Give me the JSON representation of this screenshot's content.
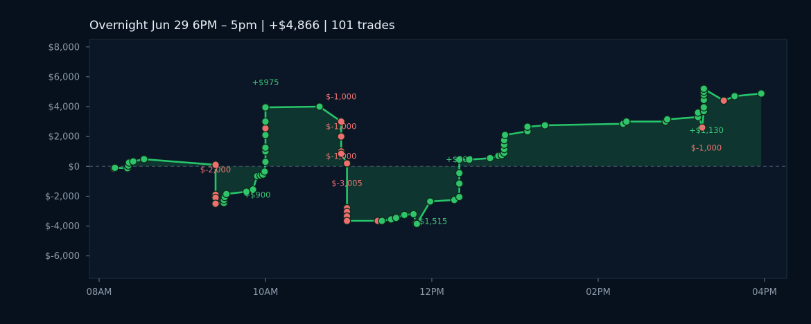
{
  "chart_data": {
    "type": "line",
    "title": "Overnight  Jun 29 6PM – 5pm  |  +$4,866  |  101 trades",
    "xlabel": "",
    "ylabel": "",
    "x_domain_hours": [
      7.92,
      16.55
    ],
    "ylim": [
      -7500,
      8500
    ],
    "x_ticks": [
      {
        "value": 8,
        "label": "08AM"
      },
      {
        "value": 10,
        "label": "10AM"
      },
      {
        "value": 12,
        "label": "12PM"
      },
      {
        "value": 14,
        "label": "02PM"
      },
      {
        "value": 16,
        "label": "04PM"
      }
    ],
    "y_ticks": [
      {
        "value": 8000,
        "label": "$8,000"
      },
      {
        "value": 6000,
        "label": "$6,000"
      },
      {
        "value": 4000,
        "label": "$4,000"
      },
      {
        "value": 2000,
        "label": "$2,000"
      },
      {
        "value": 0,
        "label": "$0"
      },
      {
        "value": -2000,
        "label": "$-2,000"
      },
      {
        "value": -4000,
        "label": "$-4,000"
      },
      {
        "value": -6000,
        "label": "$-6,000"
      }
    ],
    "grid": false,
    "legend": "none",
    "zero_line": true,
    "colors": {
      "background": "#07111d",
      "plot_background": "#0b1626",
      "plot_border": "#1f2d40",
      "line": "#27c46a",
      "fill": "#0f3b31",
      "win_point": "#2fc46a",
      "loss_point": "#ef6f70",
      "point_stroke": "#0e2a1c",
      "zero_line": "#3e4d60"
    },
    "series": [
      {
        "points": [
          {
            "x": 8.18,
            "y": -150,
            "r": "loss"
          },
          {
            "x": 8.19,
            "y": -100,
            "r": "win"
          },
          {
            "x": 8.34,
            "y": -120,
            "r": "win"
          },
          {
            "x": 8.35,
            "y": 50,
            "r": "win"
          },
          {
            "x": 8.36,
            "y": 250,
            "r": "win"
          },
          {
            "x": 8.41,
            "y": 330,
            "r": "win"
          },
          {
            "x": 8.54,
            "y": 480,
            "r": "win"
          },
          {
            "x": 9.4,
            "y": 100,
            "r": "loss"
          },
          {
            "x": 9.4,
            "y": -1900,
            "r": "loss"
          },
          {
            "x": 9.4,
            "y": -2100,
            "r": "loss"
          },
          {
            "x": 9.4,
            "y": -2500,
            "r": "loss"
          },
          {
            "x": 9.5,
            "y": -2450,
            "r": "win"
          },
          {
            "x": 9.5,
            "y": -2250,
            "r": "win"
          },
          {
            "x": 9.51,
            "y": -2050,
            "r": "win"
          },
          {
            "x": 9.53,
            "y": -1850,
            "r": "win"
          },
          {
            "x": 9.77,
            "y": -1700,
            "r": "win"
          },
          {
            "x": 9.85,
            "y": -1550,
            "r": "win"
          },
          {
            "x": 9.9,
            "y": -650,
            "r": "win"
          },
          {
            "x": 9.94,
            "y": -600,
            "r": "win"
          },
          {
            "x": 9.97,
            "y": -550,
            "r": "win"
          },
          {
            "x": 9.99,
            "y": -350,
            "r": "win"
          },
          {
            "x": 10.0,
            "y": 300,
            "r": "win"
          },
          {
            "x": 10.0,
            "y": 1000,
            "r": "win"
          },
          {
            "x": 10.0,
            "y": 1250,
            "r": "win"
          },
          {
            "x": 10.0,
            "y": 2100,
            "r": "win"
          },
          {
            "x": 10.0,
            "y": 2550,
            "r": "loss"
          },
          {
            "x": 10.0,
            "y": 3000,
            "r": "win"
          },
          {
            "x": 10.0,
            "y": 3950,
            "r": "win"
          },
          {
            "x": 10.65,
            "y": 4000,
            "r": "win"
          },
          {
            "x": 10.91,
            "y": 3000,
            "r": "loss"
          },
          {
            "x": 10.91,
            "y": 2000,
            "r": "loss"
          },
          {
            "x": 10.91,
            "y": 1000,
            "r": "loss"
          },
          {
            "x": 10.91,
            "y": 850,
            "r": "loss"
          },
          {
            "x": 10.98,
            "y": 200,
            "r": "loss"
          },
          {
            "x": 10.98,
            "y": -2800,
            "r": "loss"
          },
          {
            "x": 10.98,
            "y": -3050,
            "r": "loss"
          },
          {
            "x": 10.98,
            "y": -3350,
            "r": "loss"
          },
          {
            "x": 10.98,
            "y": -3650,
            "r": "loss"
          },
          {
            "x": 11.35,
            "y": -3650,
            "r": "loss"
          },
          {
            "x": 11.4,
            "y": -3650,
            "r": "win"
          },
          {
            "x": 11.51,
            "y": -3550,
            "r": "win"
          },
          {
            "x": 11.57,
            "y": -3450,
            "r": "win"
          },
          {
            "x": 11.67,
            "y": -3250,
            "r": "win"
          },
          {
            "x": 11.78,
            "y": -3200,
            "r": "win"
          },
          {
            "x": 11.81,
            "y": -3800,
            "r": "loss"
          },
          {
            "x": 11.82,
            "y": -3850,
            "r": "win"
          },
          {
            "x": 11.98,
            "y": -2350,
            "r": "win"
          },
          {
            "x": 12.27,
            "y": -2250,
            "r": "win"
          },
          {
            "x": 12.33,
            "y": -2050,
            "r": "win"
          },
          {
            "x": 12.33,
            "y": -1150,
            "r": "win"
          },
          {
            "x": 12.33,
            "y": -450,
            "r": "win"
          },
          {
            "x": 12.33,
            "y": 450,
            "r": "win"
          },
          {
            "x": 12.45,
            "y": 450,
            "r": "win"
          },
          {
            "x": 12.7,
            "y": 550,
            "r": "win"
          },
          {
            "x": 12.8,
            "y": 700,
            "r": "win"
          },
          {
            "x": 12.84,
            "y": 750,
            "r": "win"
          },
          {
            "x": 12.87,
            "y": 900,
            "r": "win"
          },
          {
            "x": 12.87,
            "y": 1150,
            "r": "win"
          },
          {
            "x": 12.87,
            "y": 1450,
            "r": "win"
          },
          {
            "x": 12.87,
            "y": 1750,
            "r": "win"
          },
          {
            "x": 12.88,
            "y": 2100,
            "r": "win"
          },
          {
            "x": 13.15,
            "y": 2350,
            "r": "win"
          },
          {
            "x": 13.15,
            "y": 2650,
            "r": "win"
          },
          {
            "x": 13.36,
            "y": 2750,
            "r": "win"
          },
          {
            "x": 14.3,
            "y": 2850,
            "r": "win"
          },
          {
            "x": 14.34,
            "y": 3000,
            "r": "win"
          },
          {
            "x": 14.81,
            "y": 3000,
            "r": "win"
          },
          {
            "x": 14.83,
            "y": 3150,
            "r": "win"
          },
          {
            "x": 15.2,
            "y": 3300,
            "r": "win"
          },
          {
            "x": 15.2,
            "y": 3600,
            "r": "win"
          },
          {
            "x": 15.25,
            "y": 2600,
            "r": "loss"
          },
          {
            "x": 15.27,
            "y": 3700,
            "r": "win"
          },
          {
            "x": 15.27,
            "y": 3950,
            "r": "win"
          },
          {
            "x": 15.27,
            "y": 4450,
            "r": "win"
          },
          {
            "x": 15.27,
            "y": 4800,
            "r": "win"
          },
          {
            "x": 15.27,
            "y": 5000,
            "r": "win"
          },
          {
            "x": 15.27,
            "y": 5200,
            "r": "win"
          },
          {
            "x": 15.51,
            "y": 4400,
            "r": "loss"
          },
          {
            "x": 15.64,
            "y": 4700,
            "r": "win"
          },
          {
            "x": 15.96,
            "y": 4880,
            "r": "win"
          }
        ]
      }
    ],
    "annotations": [
      {
        "text": "+$975",
        "x": 10.0,
        "y": 5450,
        "kind": "win"
      },
      {
        "text": "$-1,000",
        "x": 10.91,
        "y": 4500,
        "kind": "loss"
      },
      {
        "text": "$-1,000",
        "x": 10.91,
        "y": 2500,
        "kind": "loss"
      },
      {
        "text": "$-1,000",
        "x": 10.91,
        "y": 500,
        "kind": "loss"
      },
      {
        "text": "$-2,000",
        "x": 9.4,
        "y": -400,
        "kind": "loss"
      },
      {
        "text": "$-3,005",
        "x": 10.98,
        "y": -1300,
        "kind": "loss"
      },
      {
        "text": "+$900",
        "x": 9.9,
        "y": -2100,
        "kind": "win"
      },
      {
        "text": "$1,515",
        "x": 11.85,
        "y": -3850,
        "kind": "win-left"
      },
      {
        "text": "+$900",
        "x": 12.33,
        "y": 300,
        "kind": "win"
      },
      {
        "text": "+$1,130",
        "x": 15.3,
        "y": 2250,
        "kind": "win"
      },
      {
        "text": "$-1,000",
        "x": 15.3,
        "y": 1050,
        "kind": "loss"
      }
    ]
  }
}
